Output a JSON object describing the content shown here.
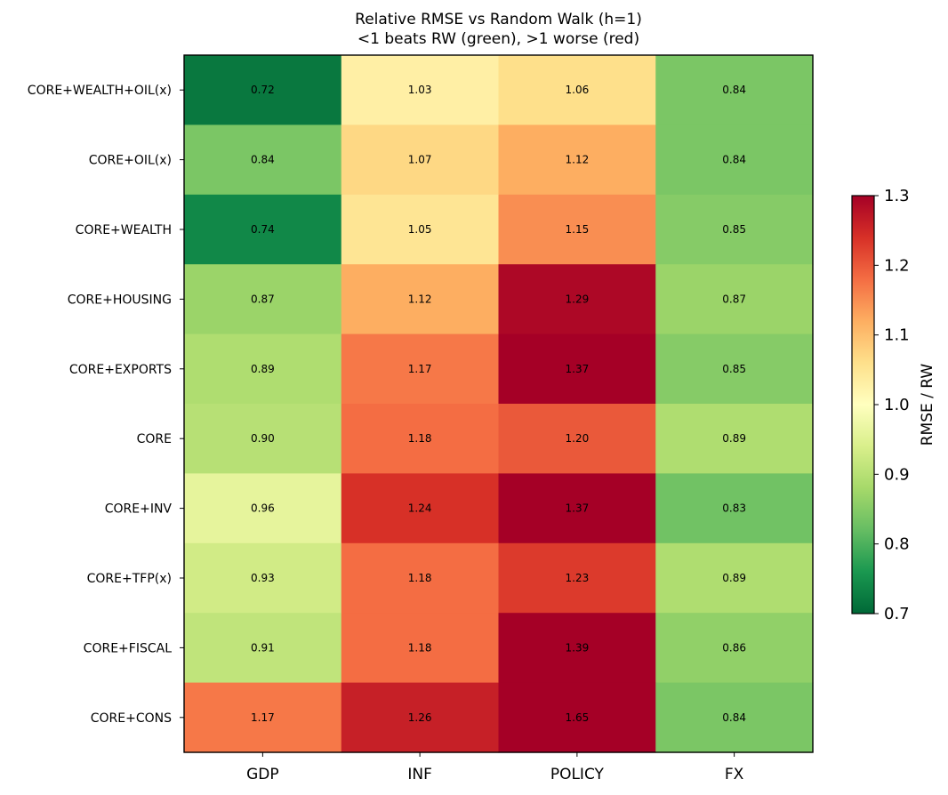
{
  "title_line1": "Relative RMSE vs Random Walk (h=1)",
  "title_line2": "<1 beats RW (green), >1 worse (red)",
  "chart_data": {
    "type": "heatmap",
    "title": "Relative RMSE vs Random Walk (h=1)\n<1 beats RW (green), >1 worse (red)",
    "columns": [
      "GDP",
      "INF",
      "POLICY",
      "FX"
    ],
    "rows": [
      "CORE+WEALTH+OIL(x)",
      "CORE+OIL(x)",
      "CORE+WEALTH",
      "CORE+HOUSING",
      "CORE+EXPORTS",
      "CORE",
      "CORE+INV",
      "CORE+TFP(x)",
      "CORE+FISCAL",
      "CORE+CONS"
    ],
    "values": [
      [
        0.72,
        1.03,
        1.06,
        0.84
      ],
      [
        0.84,
        1.07,
        1.12,
        0.84
      ],
      [
        0.74,
        1.05,
        1.15,
        0.85
      ],
      [
        0.87,
        1.12,
        1.29,
        0.87
      ],
      [
        0.89,
        1.17,
        1.37,
        0.85
      ],
      [
        0.9,
        1.18,
        1.2,
        0.89
      ],
      [
        0.96,
        1.24,
        1.37,
        0.83
      ],
      [
        0.93,
        1.18,
        1.23,
        0.89
      ],
      [
        0.91,
        1.18,
        1.39,
        0.86
      ],
      [
        1.17,
        1.26,
        1.65,
        0.84
      ]
    ],
    "colorbar": {
      "label": "RMSE / RW",
      "vmin": 0.7,
      "vmax": 1.3,
      "ticks": [
        "0.7",
        "0.8",
        "0.9",
        "1.0",
        "1.1",
        "1.2",
        "1.3"
      ],
      "colormap": "RdYlGn_r",
      "placement": "right"
    },
    "grid": false
  }
}
